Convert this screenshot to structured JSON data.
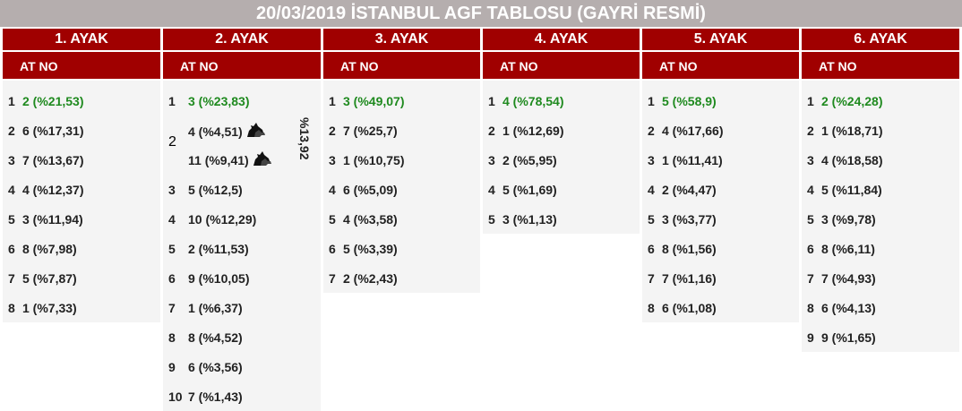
{
  "title": "20/03/2019 İSTANBUL AGF TABLOSU (GAYRİ RESMİ)",
  "colors": {
    "header_bg": "#a00000",
    "title_bg": "#b5aeae",
    "favorite": "#1f8a1f",
    "row_bg": "#f4f4f4"
  },
  "legs": [
    {
      "label": "1. AYAK",
      "sub": "AT NO",
      "rows": [
        {
          "rank": "1",
          "horse": "2 (%21,53)"
        },
        {
          "rank": "2",
          "horse": "6 (%17,31)"
        },
        {
          "rank": "3",
          "horse": "7 (%13,67)"
        },
        {
          "rank": "4",
          "horse": "4 (%12,37)"
        },
        {
          "rank": "5",
          "horse": "3 (%11,94)"
        },
        {
          "rank": "6",
          "horse": "8 (%7,98)"
        },
        {
          "rank": "7",
          "horse": "5 (%7,87)"
        },
        {
          "rank": "8",
          "horse": "1 (%7,33)"
        }
      ]
    },
    {
      "label": "2. AYAK",
      "sub": "AT NO",
      "rows": [
        {
          "rank": "1",
          "horse": "3 (%23,83)"
        },
        {
          "rank": "2",
          "horse_a": "4 (%4,51)",
          "horse_b": "11 (%9,41)",
          "coupled": "%13,92",
          "icon": "horse-head-icon"
        },
        {
          "rank": "3",
          "horse": "5 (%12,5)"
        },
        {
          "rank": "4",
          "horse": "10 (%12,29)"
        },
        {
          "rank": "5",
          "horse": "2 (%11,53)"
        },
        {
          "rank": "6",
          "horse": "9 (%10,05)"
        },
        {
          "rank": "7",
          "horse": "1 (%6,37)"
        },
        {
          "rank": "8",
          "horse": "8 (%4,52)"
        },
        {
          "rank": "9",
          "horse": "6 (%3,56)"
        },
        {
          "rank": "10",
          "horse": "7 (%1,43)"
        }
      ]
    },
    {
      "label": "3. AYAK",
      "sub": "AT NO",
      "rows": [
        {
          "rank": "1",
          "horse": "3 (%49,07)"
        },
        {
          "rank": "2",
          "horse": "7 (%25,7)"
        },
        {
          "rank": "3",
          "horse": "1 (%10,75)"
        },
        {
          "rank": "4",
          "horse": "6 (%5,09)"
        },
        {
          "rank": "5",
          "horse": "4 (%3,58)"
        },
        {
          "rank": "6",
          "horse": "5 (%3,39)"
        },
        {
          "rank": "7",
          "horse": "2 (%2,43)"
        }
      ]
    },
    {
      "label": "4. AYAK",
      "sub": "AT NO",
      "rows": [
        {
          "rank": "1",
          "horse": "4 (%78,54)"
        },
        {
          "rank": "2",
          "horse": "1 (%12,69)"
        },
        {
          "rank": "3",
          "horse": "2 (%5,95)"
        },
        {
          "rank": "4",
          "horse": "5 (%1,69)"
        },
        {
          "rank": "5",
          "horse": "3 (%1,13)"
        }
      ]
    },
    {
      "label": "5. AYAK",
      "sub": "AT NO",
      "rows": [
        {
          "rank": "1",
          "horse": "5 (%58,9)"
        },
        {
          "rank": "2",
          "horse": "4 (%17,66)"
        },
        {
          "rank": "3",
          "horse": "1 (%11,41)"
        },
        {
          "rank": "4",
          "horse": "2 (%4,47)"
        },
        {
          "rank": "5",
          "horse": "3 (%3,77)"
        },
        {
          "rank": "6",
          "horse": "8 (%1,56)"
        },
        {
          "rank": "7",
          "horse": "7 (%1,16)"
        },
        {
          "rank": "8",
          "horse": "6 (%1,08)"
        }
      ]
    },
    {
      "label": "6. AYAK",
      "sub": "AT NO",
      "rows": [
        {
          "rank": "1",
          "horse": "2 (%24,28)"
        },
        {
          "rank": "2",
          "horse": "1 (%18,71)"
        },
        {
          "rank": "3",
          "horse": "4 (%18,58)"
        },
        {
          "rank": "4",
          "horse": "5 (%11,84)"
        },
        {
          "rank": "5",
          "horse": "3 (%9,78)"
        },
        {
          "rank": "6",
          "horse": "8 (%6,11)"
        },
        {
          "rank": "7",
          "horse": "7 (%4,93)"
        },
        {
          "rank": "8",
          "horse": "6 (%4,13)"
        },
        {
          "rank": "9",
          "horse": "9 (%1,65)"
        }
      ]
    }
  ]
}
